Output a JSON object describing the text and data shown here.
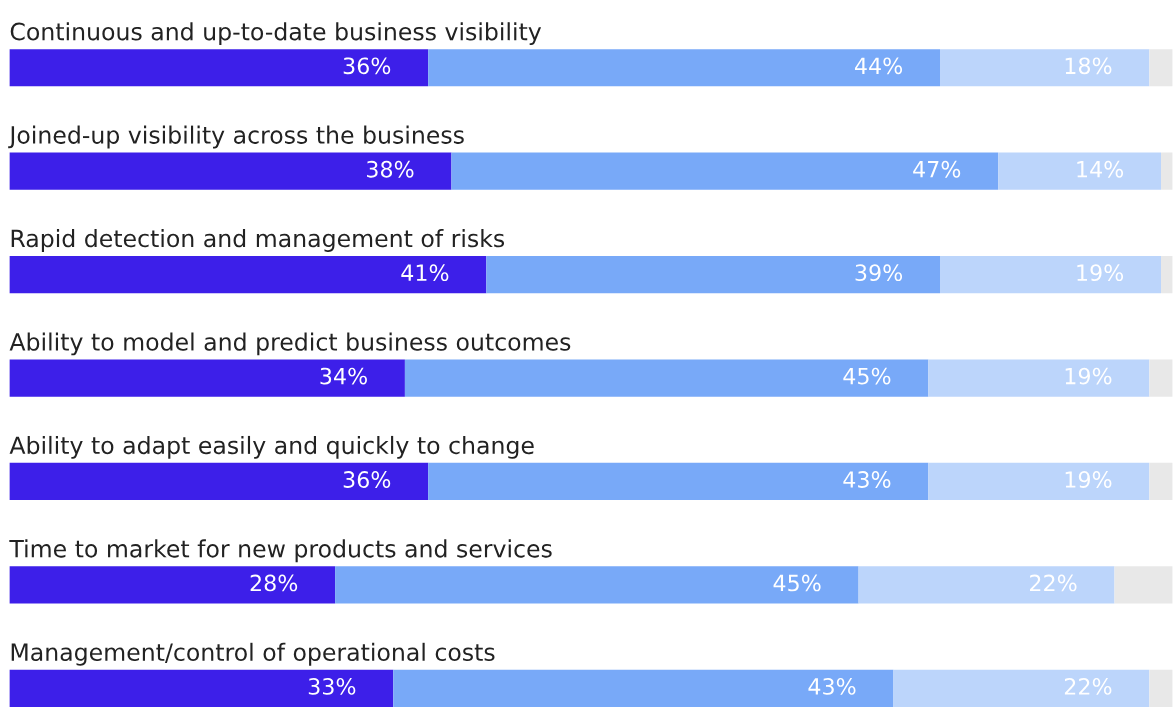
{
  "chart_data": {
    "type": "bar",
    "orientation": "horizontal",
    "stacked": true,
    "tick_labels": false,
    "xlim": [
      0,
      100
    ],
    "categories": [
      "Continuous and up-to-date business visibility",
      "Joined-up visibility across the business",
      "Rapid detection and management of risks",
      "Ability to model and predict business outcomes",
      "Ability to adapt easily and quickly to change",
      "Time to market for new products and services",
      "Management/control of operational costs"
    ],
    "series": [
      {
        "color": "#3d1fe9",
        "values": [
          36,
          38,
          41,
          34,
          36,
          28,
          33
        ],
        "value_labels": [
          "36%",
          "38%",
          "41%",
          "34%",
          "36%",
          "28%",
          "33%"
        ]
      },
      {
        "color": "#78a9f8",
        "values": [
          44,
          47,
          39,
          45,
          43,
          45,
          43
        ],
        "value_labels": [
          "44%",
          "47%",
          "39%",
          "45%",
          "43%",
          "45%",
          "43%"
        ]
      },
      {
        "color": "#bcd5fb",
        "values": [
          18,
          14,
          19,
          19,
          19,
          22,
          22
        ],
        "value_labels": [
          "18%",
          "14%",
          "19%",
          "19%",
          "19%",
          "22%",
          "22%"
        ]
      },
      {
        "color": "#e8e8e8",
        "values": [
          2,
          1,
          1,
          2,
          2,
          5,
          2
        ],
        "value_labels": [
          null,
          null,
          null,
          null,
          null,
          null,
          null
        ]
      }
    ]
  }
}
